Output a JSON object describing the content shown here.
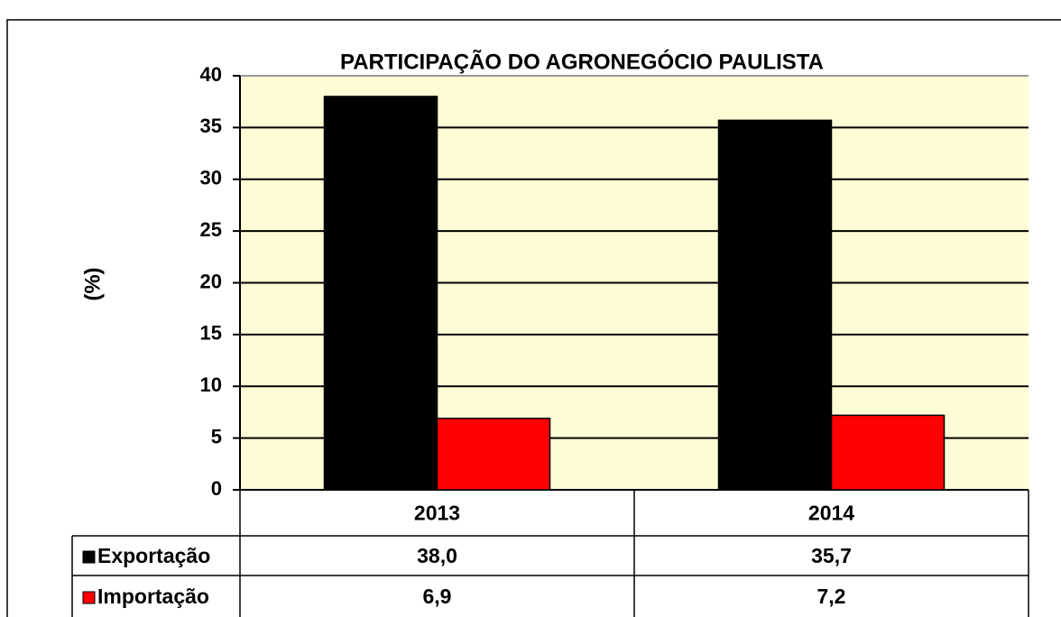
{
  "chart_data": {
    "type": "bar",
    "title": "PARTICIPAÇÃO DO AGRONEGÓCIO PAULISTA",
    "y_label": "(%)",
    "categories": [
      "2013",
      "2014"
    ],
    "series": [
      {
        "name": "Exportação",
        "color": "#000000",
        "values": [
          38.0,
          35.7
        ],
        "value_labels": [
          "38,0",
          "35,7"
        ]
      },
      {
        "name": "Importação",
        "color": "#ff0000",
        "values": [
          6.9,
          7.2
        ],
        "value_labels": [
          "6,9",
          "7,2"
        ]
      }
    ],
    "ylim": [
      0,
      40
    ],
    "yticks": [
      0,
      5,
      10,
      15,
      20,
      25,
      30,
      35,
      40
    ],
    "grid": true,
    "plot_background": "#fefcd4",
    "data_table": true
  }
}
